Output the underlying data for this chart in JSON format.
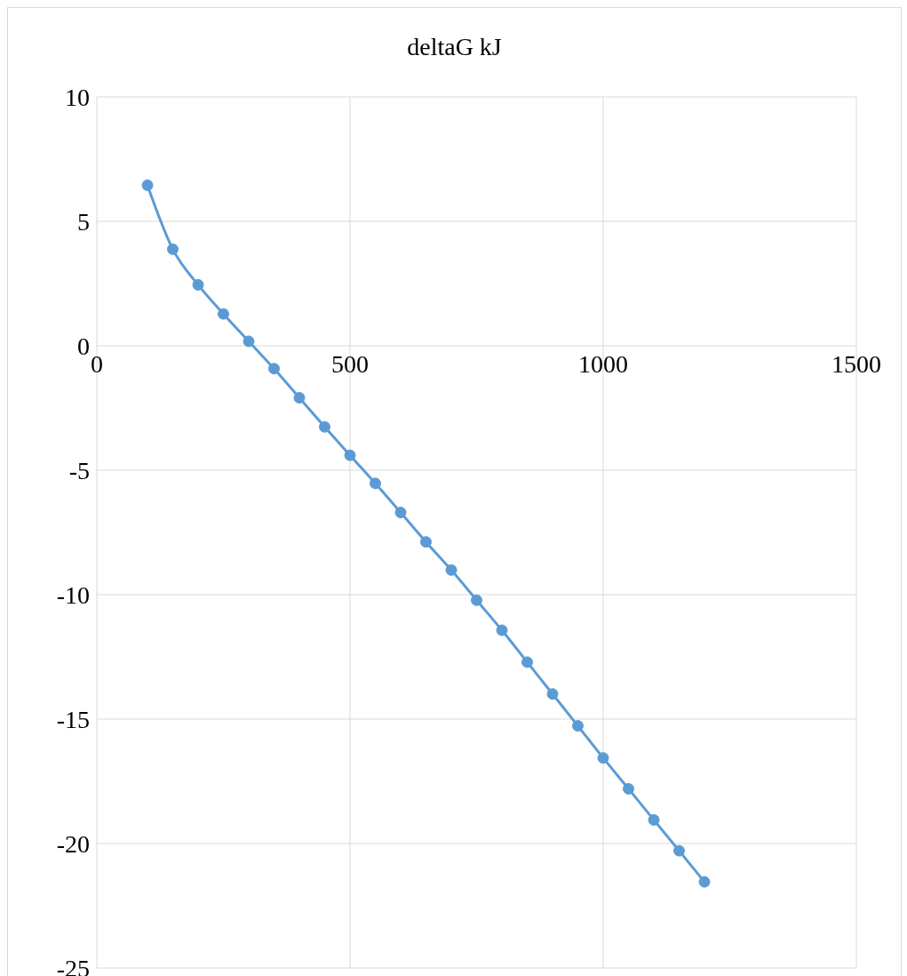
{
  "chart_data": {
    "type": "line",
    "title": "deltaG kJ",
    "x": [
      100,
      150,
      200,
      250,
      300,
      350,
      400,
      450,
      500,
      550,
      600,
      650,
      700,
      750,
      800,
      850,
      900,
      950,
      1000,
      1050,
      1100,
      1150,
      1200
    ],
    "series": [
      {
        "color": "#5b9bd5",
        "values": [
          6.45,
          3.88,
          2.45,
          1.28,
          0.18,
          -0.92,
          -2.09,
          -3.26,
          -4.4,
          -5.53,
          -6.7,
          -7.88,
          -9.01,
          -10.22,
          -11.43,
          -12.71,
          -13.99,
          -15.27,
          -16.56,
          -17.8,
          -19.05,
          -20.29,
          -21.54
        ]
      }
    ],
    "xlim": [
      0,
      1500
    ],
    "xticks": [
      0,
      500,
      1000,
      1500
    ],
    "ylim": [
      -25,
      10
    ],
    "yticks": [
      -25,
      -20,
      -15,
      -10,
      -5,
      0,
      5,
      10
    ],
    "grid": true,
    "legend": false,
    "marker": "circle",
    "line_style": "solid"
  }
}
